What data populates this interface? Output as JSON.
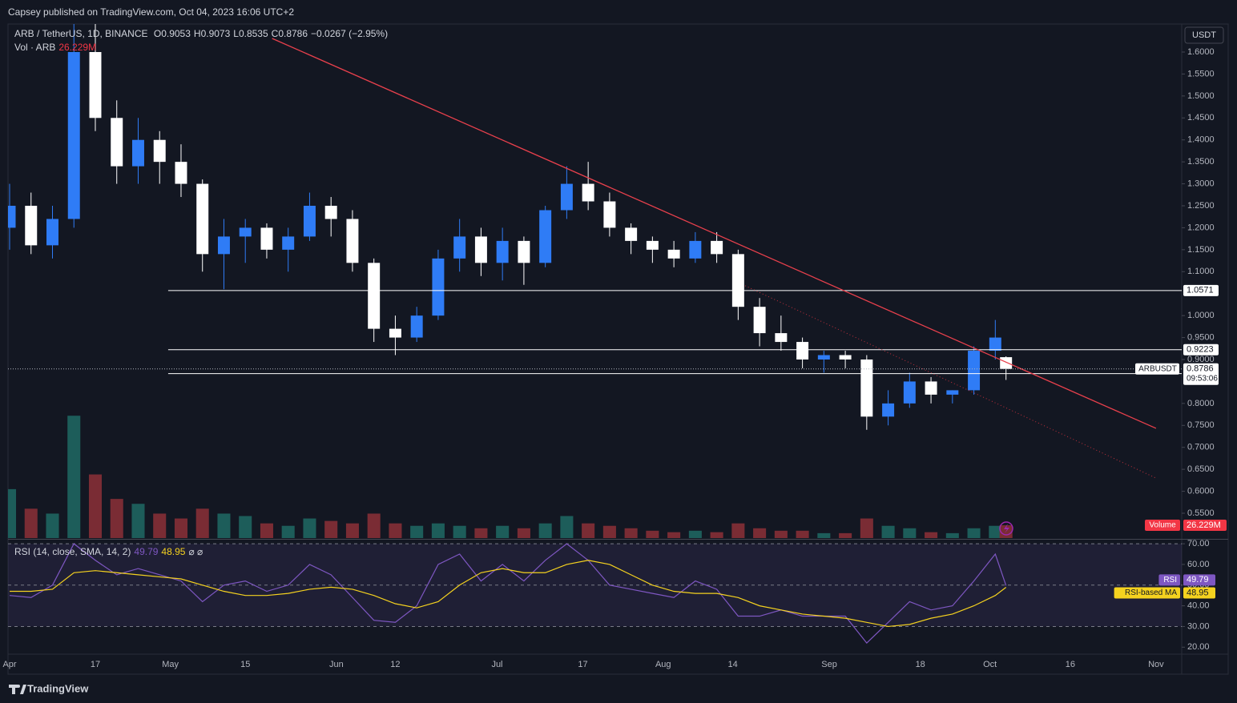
{
  "header": {
    "published": "Capsey published on TradingView.com, Oct 04, 2023 16:06 UTC+2"
  },
  "footer": {
    "brand": "TradingView"
  },
  "chart_data": [
    {
      "type": "candlestick",
      "title": "ARB / TetherUS, 1D, BINANCE",
      "currency": "USDT",
      "legend": {
        "open_label": "O",
        "open": 0.9053,
        "high_label": "H",
        "high": 0.9073,
        "low_label": "L",
        "low": 0.8535,
        "close_label": "C",
        "close": 0.8786,
        "change": "−0.0267 (−2.95%)"
      },
      "x": [
        0,
        4,
        8,
        12,
        16,
        20,
        24,
        28,
        32,
        36,
        40,
        44,
        48,
        52,
        56,
        60,
        64,
        68,
        72,
        76,
        80,
        84,
        88,
        92,
        96,
        100,
        104,
        108,
        112,
        116,
        120,
        124,
        128,
        132,
        136,
        140,
        144,
        148,
        152,
        156,
        160,
        164,
        168,
        172,
        176,
        180,
        184,
        186
      ],
      "open": [
        1.2,
        1.25,
        1.16,
        1.22,
        1.6,
        1.45,
        1.34,
        1.4,
        1.35,
        1.3,
        1.14,
        1.18,
        1.2,
        1.15,
        1.18,
        1.25,
        1.22,
        1.12,
        0.97,
        0.95,
        1.0,
        1.13,
        1.18,
        1.12,
        1.17,
        1.12,
        1.24,
        1.3,
        1.26,
        1.2,
        1.17,
        1.15,
        1.13,
        1.17,
        1.14,
        1.02,
        0.96,
        0.94,
        0.9,
        0.91,
        0.9,
        0.77,
        0.8,
        0.85,
        0.82,
        0.83,
        0.92,
        0.9053
      ],
      "high": [
        1.3,
        1.28,
        1.25,
        1.7,
        1.7,
        1.49,
        1.45,
        1.42,
        1.39,
        1.31,
        1.22,
        1.22,
        1.21,
        1.2,
        1.28,
        1.27,
        1.24,
        1.13,
        1.0,
        1.02,
        1.15,
        1.22,
        1.2,
        1.2,
        1.18,
        1.25,
        1.34,
        1.35,
        1.28,
        1.21,
        1.18,
        1.17,
        1.19,
        1.19,
        1.15,
        1.04,
        1.0,
        0.95,
        0.92,
        0.92,
        0.91,
        0.83,
        0.87,
        0.86,
        0.83,
        0.93,
        0.99,
        0.9073
      ],
      "low": [
        1.15,
        1.14,
        1.13,
        1.2,
        1.42,
        1.3,
        1.3,
        1.3,
        1.27,
        1.1,
        1.06,
        1.12,
        1.13,
        1.1,
        1.17,
        1.18,
        1.1,
        0.94,
        0.91,
        0.94,
        0.99,
        1.1,
        1.09,
        1.08,
        1.07,
        1.11,
        1.22,
        1.24,
        1.18,
        1.14,
        1.12,
        1.11,
        1.12,
        1.12,
        0.99,
        0.93,
        0.92,
        0.88,
        0.87,
        0.88,
        0.74,
        0.75,
        0.79,
        0.8,
        0.8,
        0.82,
        0.9,
        0.8535
      ],
      "close": [
        1.25,
        1.16,
        1.22,
        1.6,
        1.45,
        1.34,
        1.4,
        1.35,
        1.3,
        1.14,
        1.18,
        1.2,
        1.15,
        1.18,
        1.25,
        1.22,
        1.12,
        0.97,
        0.95,
        1.0,
        1.13,
        1.18,
        1.12,
        1.17,
        1.12,
        1.24,
        1.3,
        1.26,
        1.2,
        1.17,
        1.15,
        1.13,
        1.17,
        1.14,
        1.02,
        0.96,
        0.94,
        0.9,
        0.91,
        0.9,
        0.77,
        0.8,
        0.85,
        0.82,
        0.83,
        0.92,
        0.95,
        0.8786
      ],
      "up_color": "#2f7cf6",
      "down_color": "#ffffff",
      "xlim": [
        -0.3,
        218.8
      ],
      "xticks": [
        {
          "value": 0,
          "label": "Apr"
        },
        {
          "value": 16,
          "label": "17"
        },
        {
          "value": 30,
          "label": "May"
        },
        {
          "value": 44,
          "label": "15"
        },
        {
          "value": 61,
          "label": "Jun"
        },
        {
          "value": 72,
          "label": "12"
        },
        {
          "value": 91,
          "label": "Jul"
        },
        {
          "value": 107,
          "label": "17"
        },
        {
          "value": 122,
          "label": "Aug"
        },
        {
          "value": 135,
          "label": "14"
        },
        {
          "value": 153,
          "label": "Sep"
        },
        {
          "value": 170,
          "label": "18"
        },
        {
          "value": 183,
          "label": "Oct"
        },
        {
          "value": 198,
          "label": "16"
        },
        {
          "value": 214,
          "label": "Nov"
        }
      ],
      "ylim": [
        0.4935,
        1.6638
      ],
      "yticks": [
        {
          "value": 1.6,
          "label": "1.6000"
        },
        {
          "value": 1.55,
          "label": "1.5500"
        },
        {
          "value": 1.5,
          "label": "1.5000"
        },
        {
          "value": 1.45,
          "label": "1.4500"
        },
        {
          "value": 1.4,
          "label": "1.4000"
        },
        {
          "value": 1.35,
          "label": "1.3500"
        },
        {
          "value": 1.3,
          "label": "1.3000"
        },
        {
          "value": 1.25,
          "label": "1.2500"
        },
        {
          "value": 1.2,
          "label": "1.2000"
        },
        {
          "value": 1.15,
          "label": "1.1500"
        },
        {
          "value": 1.1,
          "label": "1.1000"
        },
        {
          "value": 1.0,
          "label": "1.0000"
        },
        {
          "value": 0.95,
          "label": "0.9500"
        },
        {
          "value": 0.9,
          "label": "0.9000"
        },
        {
          "value": 0.8,
          "label": "0.8000"
        },
        {
          "value": 0.75,
          "label": "0.7500"
        },
        {
          "value": 0.7,
          "label": "0.7000"
        },
        {
          "value": 0.65,
          "label": "0.6500"
        },
        {
          "value": 0.6,
          "label": "0.6000"
        },
        {
          "value": 0.55,
          "label": "0.5500"
        }
      ],
      "levels": [
        {
          "value": 1.0571,
          "from": 29.6
        },
        {
          "value": 0.9223,
          "from": 29.6
        },
        {
          "value": 0.8679,
          "from": 29.6
        }
      ],
      "countdown": "09:53:06",
      "symbol_tag": "ARBUSDT",
      "trendlines": [
        {
          "x": [
            49,
            214
          ],
          "y": [
            1.631,
            0.7433
          ],
          "color": "#e8404c",
          "style": "solid"
        },
        {
          "x": [
            137.3,
            214
          ],
          "y": [
            1.068,
            0.63
          ],
          "color": "#c2303c",
          "style": "dotted"
        }
      ]
    },
    {
      "type": "bar",
      "title": "Vol · ARB",
      "label": "Volume",
      "last_label": "26.229M",
      "values": [
        100,
        60,
        50,
        250,
        130,
        80,
        70,
        50,
        40,
        60,
        50,
        45,
        30,
        25,
        40,
        35,
        30,
        50,
        30,
        25,
        30,
        25,
        20,
        25,
        20,
        30,
        45,
        30,
        25,
        20,
        15,
        12,
        15,
        12,
        30,
        20,
        15,
        15,
        10,
        10,
        40,
        25,
        20,
        12,
        10,
        20,
        25,
        26.229
      ],
      "up_color": "#1d5d5a",
      "down_color": "#7a2c34",
      "ylim": [
        0,
        270
      ]
    },
    {
      "type": "line",
      "title": "RSI (14, close, SMA, 14, 2)",
      "icons": "⌀ ⌀",
      "series": [
        {
          "name": "RSI",
          "color": "#7e57c2",
          "values": [
            45,
            44,
            50,
            70,
            62,
            55,
            58,
            55,
            52,
            42,
            50,
            52,
            47,
            50,
            60,
            55,
            44,
            33,
            32,
            40,
            60,
            65,
            52,
            60,
            52,
            62,
            70,
            62,
            50,
            48,
            46,
            44,
            52,
            48,
            35,
            35,
            38,
            35,
            35,
            35,
            22,
            32,
            42,
            38,
            40,
            52,
            65,
            49.79
          ]
        },
        {
          "name": "RSI-based MA",
          "color": "#f5d21f",
          "values": [
            47,
            47,
            48,
            56,
            57,
            56,
            55,
            54,
            53,
            50,
            47,
            45,
            45,
            46,
            48,
            49,
            48,
            45,
            41,
            39,
            42,
            50,
            56,
            58,
            56,
            56,
            60,
            62,
            60,
            55,
            50,
            47,
            46,
            46,
            44,
            40,
            38,
            36,
            35,
            34,
            32,
            30,
            31,
            34,
            36,
            40,
            45,
            48.95
          ]
        }
      ],
      "bands": [
        70,
        50,
        30
      ],
      "ylim": [
        17.4,
        71.2
      ],
      "yticks": [
        {
          "value": 70,
          "label": "70.00"
        },
        {
          "value": 60,
          "label": "60.00"
        },
        {
          "value": 50,
          "label": "50.00"
        },
        {
          "value": 40,
          "label": "40.00"
        },
        {
          "value": 30,
          "label": "30.00"
        },
        {
          "value": 20,
          "label": "20.00"
        }
      ]
    }
  ]
}
